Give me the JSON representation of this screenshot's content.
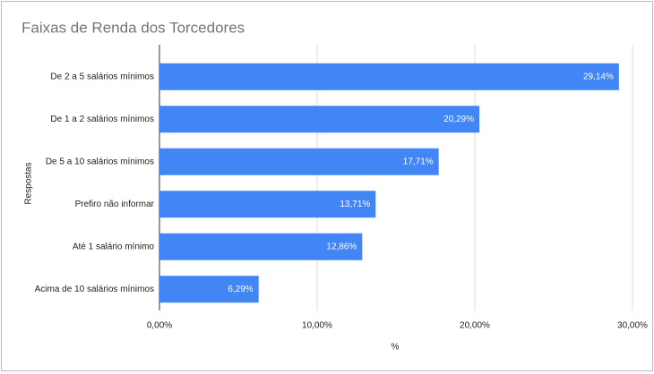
{
  "chart_data": {
    "type": "bar",
    "orientation": "horizontal",
    "title": "Faixas de Renda dos Torcedores",
    "x_label": "%",
    "y_label": "Respostas",
    "categories": [
      "De 2 a 5 salários mínimos",
      "De 1 a 2 salários mínimos",
      "De 5 a 10 salários mínimos",
      "Prefiro não informar",
      "Até 1 salário mínimo",
      "Acima de 10 salários mínimos"
    ],
    "values": [
      29.14,
      20.29,
      17.71,
      13.71,
      12.86,
      6.29
    ],
    "value_labels": [
      "29,14%",
      "20,29%",
      "17,71%",
      "13,71%",
      "12,86%",
      "6,29%"
    ],
    "color": "#4285f4",
    "xlim": [
      0,
      30
    ],
    "xticks": [
      {
        "value": 0,
        "label": "0,00%"
      },
      {
        "value": 10,
        "label": "10,00%"
      },
      {
        "value": 20,
        "label": "20,00%"
      },
      {
        "value": 30,
        "label": "30,00%"
      }
    ],
    "grid": true
  }
}
